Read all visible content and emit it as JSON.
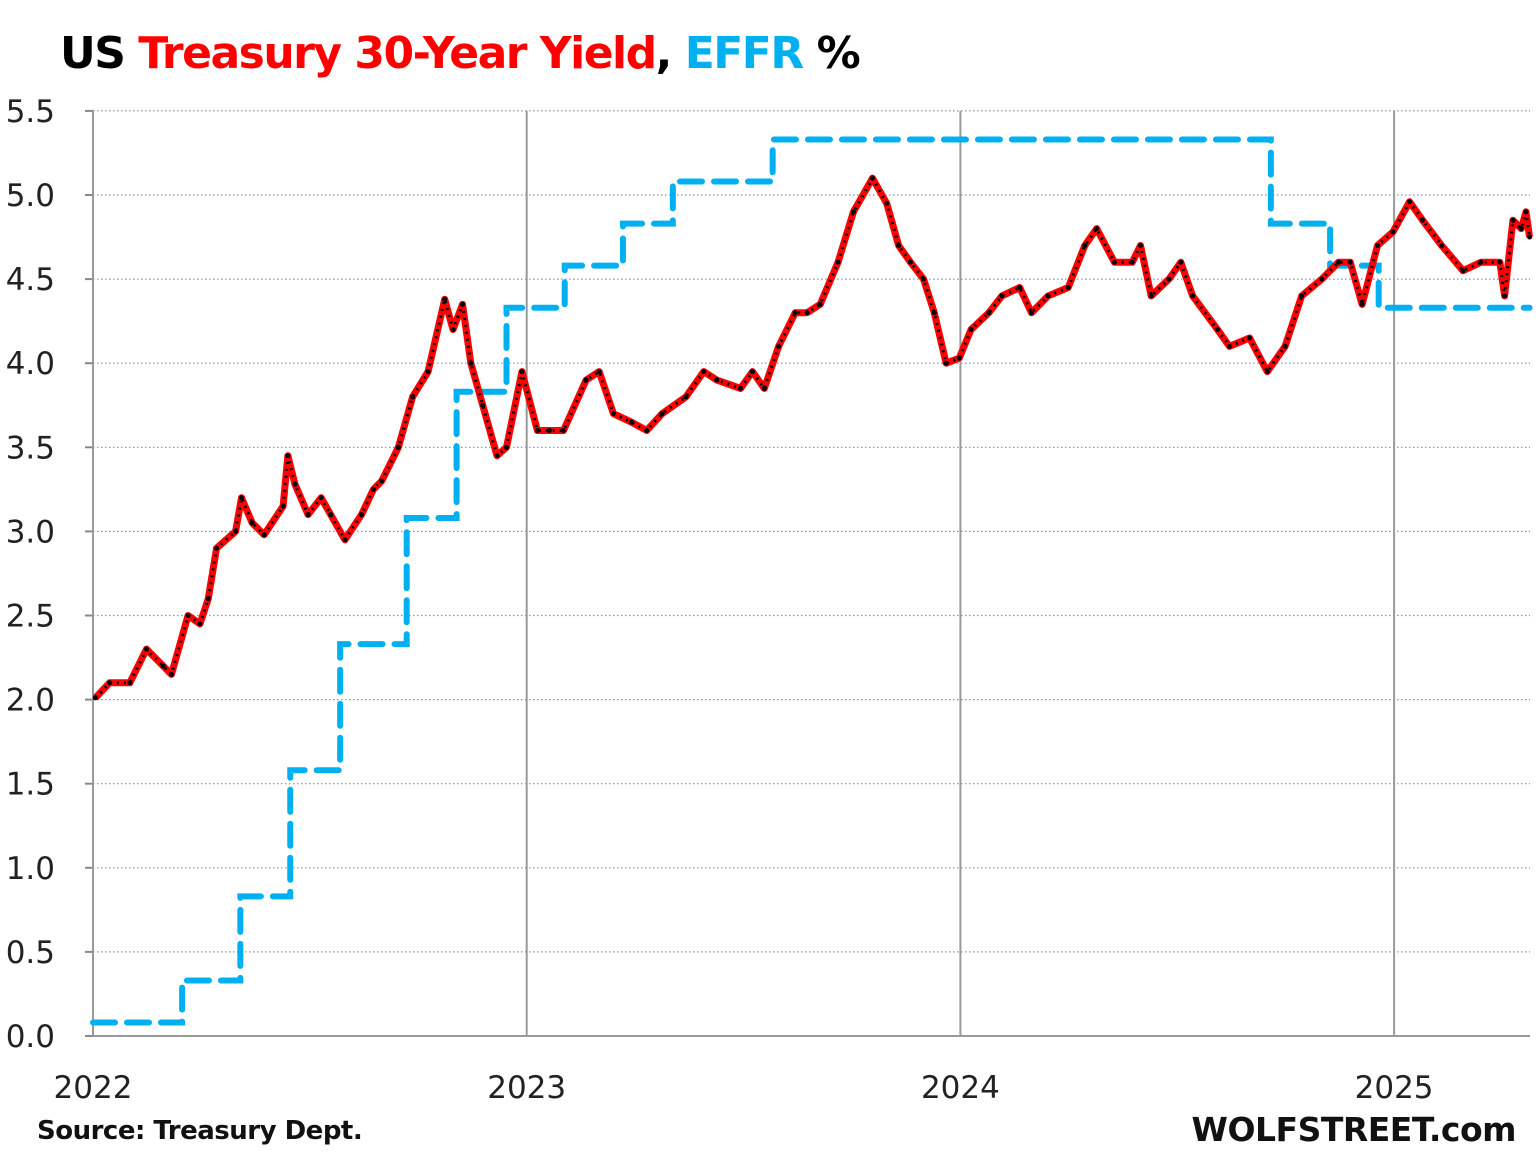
{
  "chart_data": {
    "type": "line",
    "title_parts": [
      {
        "text": "US ",
        "color": "#000000"
      },
      {
        "text": "Treasury 30-Year Yield",
        "color": "#ff0000"
      },
      {
        "text": ", ",
        "color": "#000000"
      },
      {
        "text": "EFFR",
        "color": "#00b0f0"
      },
      {
        "text": " %",
        "color": "#000000"
      }
    ],
    "ylim": [
      0,
      5.5
    ],
    "yticks": [
      "0.0",
      "0.5",
      "1.0",
      "1.5",
      "2.0",
      "2.5",
      "3.0",
      "3.5",
      "4.0",
      "4.5",
      "5.0",
      "5.5"
    ],
    "xticks": [
      "2022",
      "2023",
      "2024",
      "2025"
    ],
    "xlim": [
      "2022-01-01",
      "2025-04-25"
    ],
    "grid": "horizontal dotted, vertical at year boundaries",
    "series": [
      {
        "key": "treasury30y",
        "color": "#ff0000",
        "style": "solid with black dotted overlay",
        "points": [
          [
            "2022-01-03",
            2.01
          ],
          [
            "2022-01-15",
            2.1
          ],
          [
            "2022-02-01",
            2.1
          ],
          [
            "2022-02-15",
            2.3
          ],
          [
            "2022-03-01",
            2.2
          ],
          [
            "2022-03-08",
            2.15
          ],
          [
            "2022-03-22",
            2.5
          ],
          [
            "2022-04-01",
            2.45
          ],
          [
            "2022-04-08",
            2.6
          ],
          [
            "2022-04-15",
            2.9
          ],
          [
            "2022-05-01",
            3.0
          ],
          [
            "2022-05-06",
            3.2
          ],
          [
            "2022-05-15",
            3.05
          ],
          [
            "2022-05-25",
            2.98
          ],
          [
            "2022-06-10",
            3.15
          ],
          [
            "2022-06-14",
            3.45
          ],
          [
            "2022-06-20",
            3.28
          ],
          [
            "2022-07-01",
            3.1
          ],
          [
            "2022-07-12",
            3.2
          ],
          [
            "2022-07-20",
            3.1
          ],
          [
            "2022-08-01",
            2.95
          ],
          [
            "2022-08-15",
            3.1
          ],
          [
            "2022-08-25",
            3.25
          ],
          [
            "2022-09-01",
            3.3
          ],
          [
            "2022-09-15",
            3.5
          ],
          [
            "2022-09-27",
            3.8
          ],
          [
            "2022-10-10",
            3.95
          ],
          [
            "2022-10-24",
            4.38
          ],
          [
            "2022-10-31",
            4.2
          ],
          [
            "2022-11-08",
            4.35
          ],
          [
            "2022-11-15",
            4.0
          ],
          [
            "2022-11-25",
            3.75
          ],
          [
            "2022-12-07",
            3.45
          ],
          [
            "2022-12-15",
            3.5
          ],
          [
            "2022-12-28",
            3.95
          ],
          [
            "2023-01-10",
            3.6
          ],
          [
            "2023-01-20",
            3.6
          ],
          [
            "2023-02-01",
            3.6
          ],
          [
            "2023-02-20",
            3.9
          ],
          [
            "2023-03-03",
            3.95
          ],
          [
            "2023-03-15",
            3.7
          ],
          [
            "2023-03-30",
            3.65
          ],
          [
            "2023-04-12",
            3.6
          ],
          [
            "2023-04-25",
            3.7
          ],
          [
            "2023-05-15",
            3.8
          ],
          [
            "2023-05-30",
            3.95
          ],
          [
            "2023-06-10",
            3.9
          ],
          [
            "2023-06-30",
            3.85
          ],
          [
            "2023-07-10",
            3.95
          ],
          [
            "2023-07-20",
            3.85
          ],
          [
            "2023-08-01",
            4.1
          ],
          [
            "2023-08-15",
            4.3
          ],
          [
            "2023-08-25",
            4.3
          ],
          [
            "2023-09-05",
            4.35
          ],
          [
            "2023-09-20",
            4.6
          ],
          [
            "2023-10-03",
            4.9
          ],
          [
            "2023-10-19",
            5.1
          ],
          [
            "2023-10-31",
            4.95
          ],
          [
            "2023-11-10",
            4.7
          ],
          [
            "2023-11-20",
            4.6
          ],
          [
            "2023-12-01",
            4.5
          ],
          [
            "2023-12-10",
            4.3
          ],
          [
            "2023-12-20",
            4.0
          ],
          [
            "2023-12-31",
            4.03
          ],
          [
            "2024-01-10",
            4.2
          ],
          [
            "2024-01-25",
            4.3
          ],
          [
            "2024-02-05",
            4.4
          ],
          [
            "2024-02-20",
            4.45
          ],
          [
            "2024-03-01",
            4.3
          ],
          [
            "2024-03-15",
            4.4
          ],
          [
            "2024-04-01",
            4.45
          ],
          [
            "2024-04-15",
            4.7
          ],
          [
            "2024-04-25",
            4.8
          ],
          [
            "2024-05-10",
            4.6
          ],
          [
            "2024-05-25",
            4.6
          ],
          [
            "2024-06-01",
            4.7
          ],
          [
            "2024-06-10",
            4.4
          ],
          [
            "2024-06-25",
            4.5
          ],
          [
            "2024-07-05",
            4.6
          ],
          [
            "2024-07-15",
            4.4
          ],
          [
            "2024-08-05",
            4.2
          ],
          [
            "2024-08-15",
            4.1
          ],
          [
            "2024-09-01",
            4.15
          ],
          [
            "2024-09-16",
            3.95
          ],
          [
            "2024-10-01",
            4.1
          ],
          [
            "2024-10-15",
            4.4
          ],
          [
            "2024-11-01",
            4.5
          ],
          [
            "2024-11-15",
            4.6
          ],
          [
            "2024-11-25",
            4.6
          ],
          [
            "2024-12-05",
            4.35
          ],
          [
            "2024-12-18",
            4.7
          ],
          [
            "2024-12-31",
            4.78
          ],
          [
            "2025-01-14",
            4.96
          ],
          [
            "2025-01-25",
            4.85
          ],
          [
            "2025-02-10",
            4.7
          ],
          [
            "2025-02-28",
            4.55
          ],
          [
            "2025-03-15",
            4.6
          ],
          [
            "2025-03-31",
            4.6
          ],
          [
            "2025-04-04",
            4.4
          ],
          [
            "2025-04-11",
            4.85
          ],
          [
            "2025-04-18",
            4.8
          ],
          [
            "2025-04-22",
            4.9
          ],
          [
            "2025-04-25",
            4.75
          ]
        ]
      },
      {
        "key": "effr",
        "color": "#00b0f0",
        "style": "dashed step",
        "steps": [
          [
            "2022-01-01",
            0.08
          ],
          [
            "2022-03-17",
            0.33
          ],
          [
            "2022-05-05",
            0.83
          ],
          [
            "2022-06-16",
            1.58
          ],
          [
            "2022-07-28",
            2.33
          ],
          [
            "2022-09-22",
            3.08
          ],
          [
            "2022-11-03",
            3.83
          ],
          [
            "2022-12-15",
            4.33
          ],
          [
            "2023-02-02",
            4.58
          ],
          [
            "2023-03-23",
            4.83
          ],
          [
            "2023-05-04",
            5.08
          ],
          [
            "2023-07-27",
            5.33
          ],
          [
            "2024-09-19",
            4.83
          ],
          [
            "2024-11-08",
            4.58
          ],
          [
            "2024-12-19",
            4.33
          ],
          [
            "2025-04-25",
            4.33
          ]
        ]
      }
    ]
  },
  "footer": {
    "source": "Source: Treasury Dept.",
    "brand": "WOLFSTREET.com"
  }
}
